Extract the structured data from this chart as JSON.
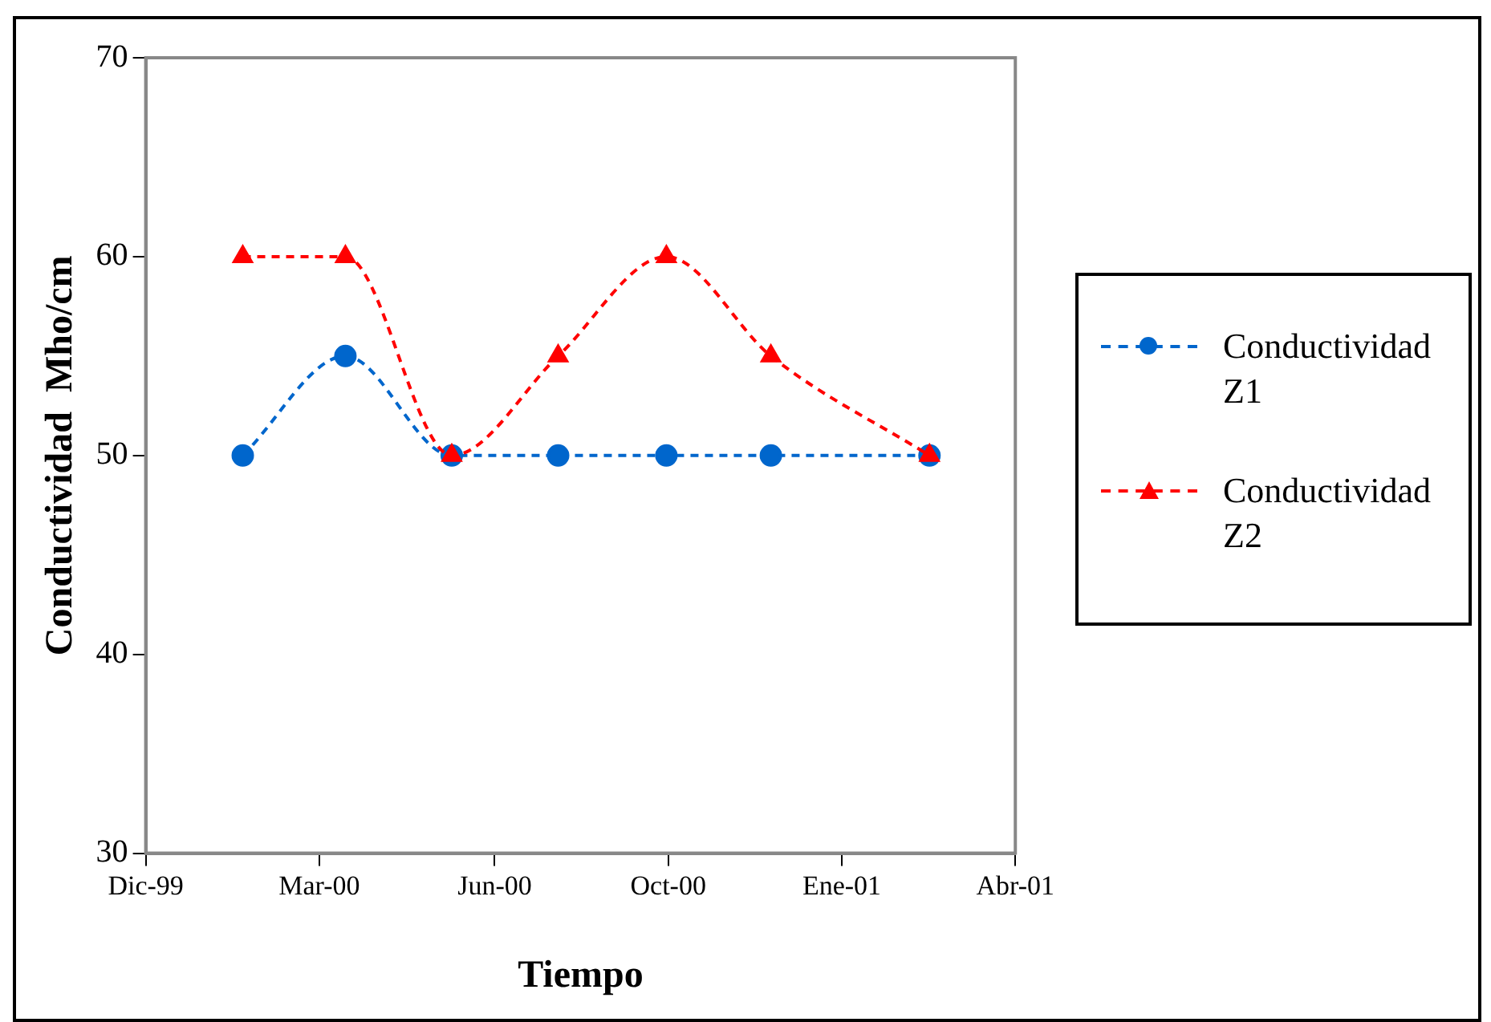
{
  "chart_data": {
    "type": "line",
    "xlabel": "Tiempo",
    "ylabel": "Conductividad  Mho/cm",
    "x": [
      "2000-02-16",
      "2000-04-11",
      "2000-06-07",
      "2000-08-03",
      "2000-09-30",
      "2000-11-25",
      "2001-02-18"
    ],
    "series": [
      {
        "name": "Conductividad Z1",
        "color": "#0066cc",
        "marker": "circle",
        "values": [
          50,
          55,
          50,
          50,
          50,
          50,
          50
        ]
      },
      {
        "name": "Conductividad Z2",
        "color": "#ff0000",
        "marker": "triangle",
        "values": [
          60,
          60,
          50,
          55,
          60,
          55,
          50
        ]
      }
    ],
    "xlim": [
      "1999-12-26",
      "2001-04-05"
    ],
    "xticks": [
      {
        "value": "1999-12-26",
        "label": "Dic-99"
      },
      {
        "value": "2000-03-28",
        "label": "Mar-00"
      },
      {
        "value": "2000-06-30",
        "label": "Jun-00"
      },
      {
        "value": "2000-10-01",
        "label": "Oct-00"
      },
      {
        "value": "2001-01-02",
        "label": "Ene-01"
      },
      {
        "value": "2001-04-05",
        "label": "Abr-01"
      }
    ],
    "ylim": [
      30,
      70
    ],
    "yticks": [
      30,
      40,
      50,
      60,
      70
    ],
    "grid": false,
    "legend": "right",
    "line_style": "dashed"
  }
}
